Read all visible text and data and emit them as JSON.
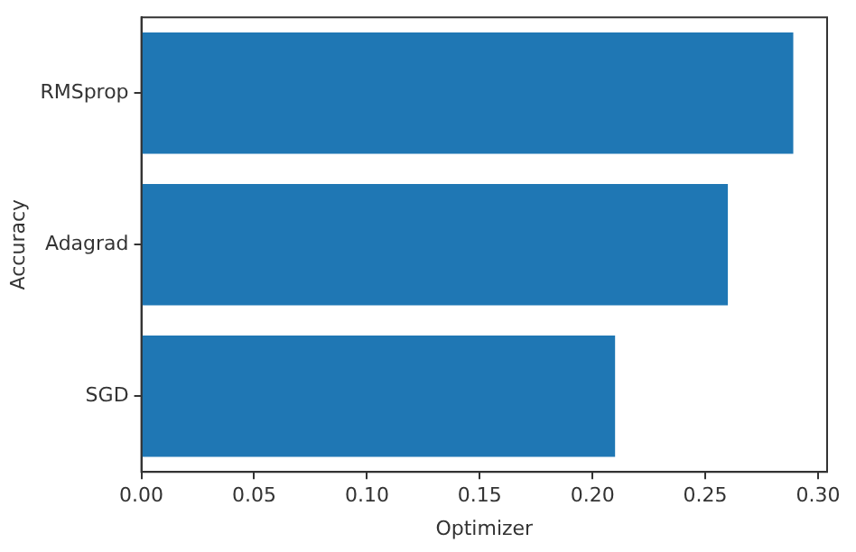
{
  "chart_data": {
    "type": "bar",
    "orientation": "horizontal",
    "categories": [
      "RMSprop",
      "Adagrad",
      "SGD"
    ],
    "values": [
      0.289,
      0.26,
      0.21
    ],
    "color": "#1f77b4",
    "xlabel": "Optimizer",
    "ylabel": "Accuracy",
    "xlim": [
      0,
      0.304
    ],
    "xticks": [
      {
        "value": 0,
        "label": "0.00"
      },
      {
        "value": 0.05,
        "label": "0.05"
      },
      {
        "value": 0.1,
        "label": "0.10"
      },
      {
        "value": 0.15,
        "label": "0.15"
      },
      {
        "value": 0.2,
        "label": "0.20"
      },
      {
        "value": 0.25,
        "label": "0.25"
      },
      {
        "value": 0.3,
        "label": "0.30"
      }
    ],
    "grid": false,
    "legend": false
  }
}
